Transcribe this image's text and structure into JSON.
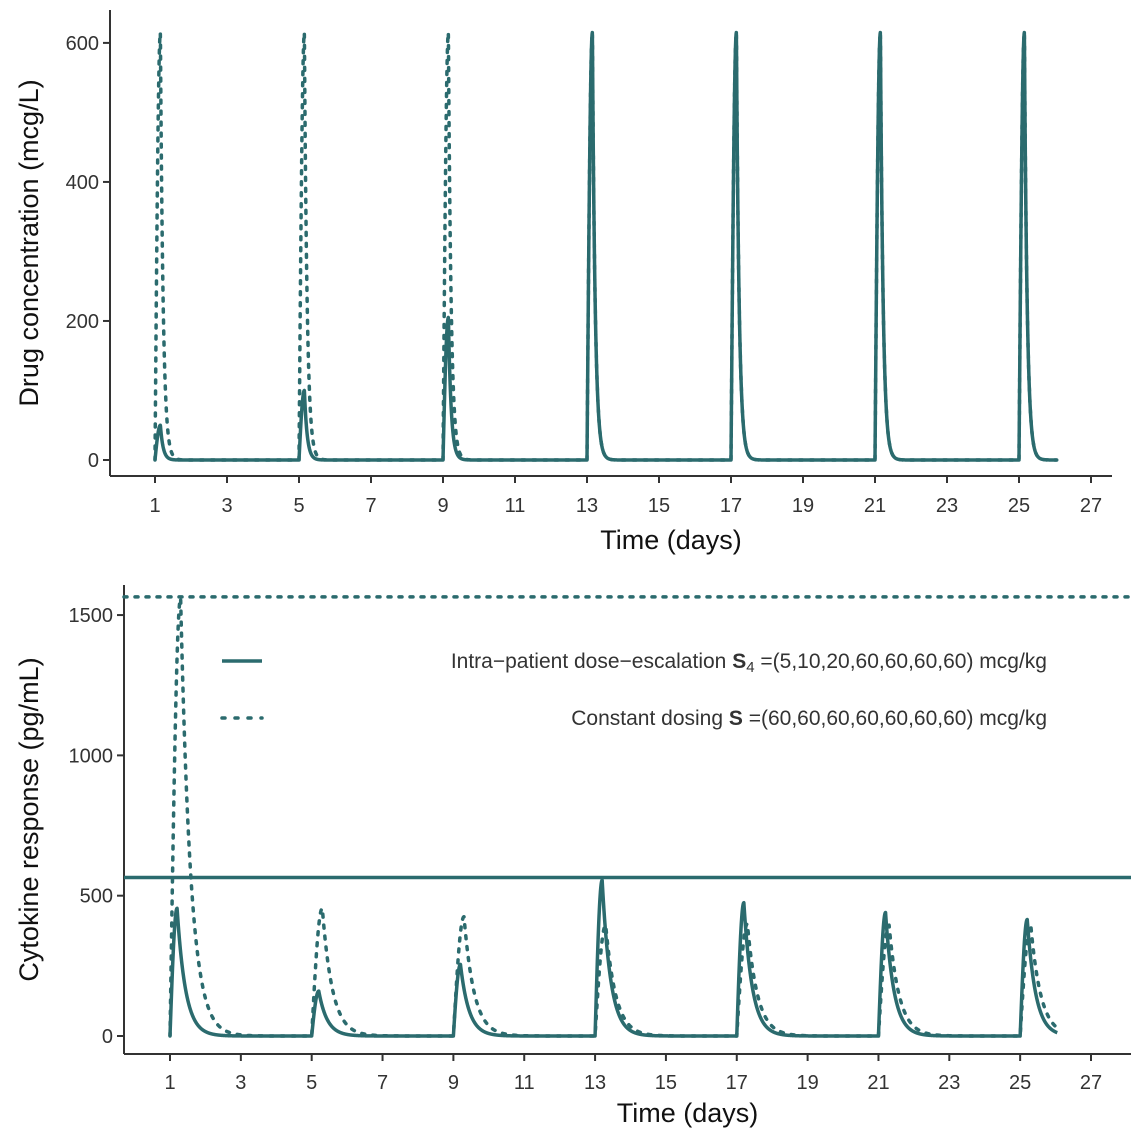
{
  "chart_data": [
    {
      "type": "line",
      "panel": "top",
      "xlabel": "Time (days)",
      "ylabel": "Drug concentration (mcg/L)",
      "xlim": [
        1,
        27
      ],
      "ylim": [
        0,
        620
      ],
      "xticks": [
        1,
        3,
        5,
        7,
        9,
        11,
        13,
        15,
        17,
        19,
        21,
        23,
        25,
        27
      ],
      "yticks": [
        0,
        200,
        400,
        600
      ],
      "color": "#2b6b6e",
      "dose_days": [
        1,
        5,
        9,
        13,
        17,
        21,
        25
      ],
      "series": [
        {
          "style": "solid",
          "peaks": [
            50,
            100,
            205,
            615,
            615,
            615,
            615
          ],
          "peak_delay_days": 0.15,
          "decay_per_day": 13
        },
        {
          "style": "dotted",
          "peaks": [
            615,
            615,
            615,
            615,
            615,
            615,
            615
          ],
          "peak_delay_days": 0.15,
          "decay_per_day": 13
        }
      ]
    },
    {
      "type": "line",
      "panel": "bottom",
      "xlabel": "Time (days)",
      "ylabel": "Cytokine response (pg/mL)",
      "xlim": [
        1,
        27
      ],
      "ylim": [
        0,
        1600
      ],
      "xticks": [
        1,
        3,
        5,
        7,
        9,
        11,
        13,
        15,
        17,
        19,
        21,
        23,
        25,
        27
      ],
      "yticks": [
        0,
        500,
        1000,
        1500
      ],
      "color": "#2b6b6e",
      "dose_days": [
        1,
        5,
        9,
        13,
        17,
        21,
        25
      ],
      "series": [
        {
          "style": "solid",
          "peaks": [
            455,
            160,
            255,
            555,
            475,
            440,
            415
          ],
          "peak_delay_days": 0.2,
          "decay_per_day": 4.2,
          "hline": 565
        },
        {
          "style": "dotted",
          "peaks": [
            1560,
            455,
            425,
            395,
            400,
            395,
            395
          ],
          "peak_delay_days": 0.3,
          "decay_per_day": 3.5,
          "hline": 1565
        }
      ],
      "legend": {
        "position": "top-center",
        "entries": [
          {
            "style": "solid",
            "text": "Intra−patient dose−escalation",
            "symbol": "S",
            "subscript": "4",
            "value": " =(5,10,20,60,60,60,60) mcg/kg"
          },
          {
            "style": "dotted",
            "text": "Constant dosing",
            "symbol": "S",
            "subscript": "",
            "value": " =(60,60,60,60,60,60,60) mcg/kg"
          }
        ]
      }
    }
  ]
}
